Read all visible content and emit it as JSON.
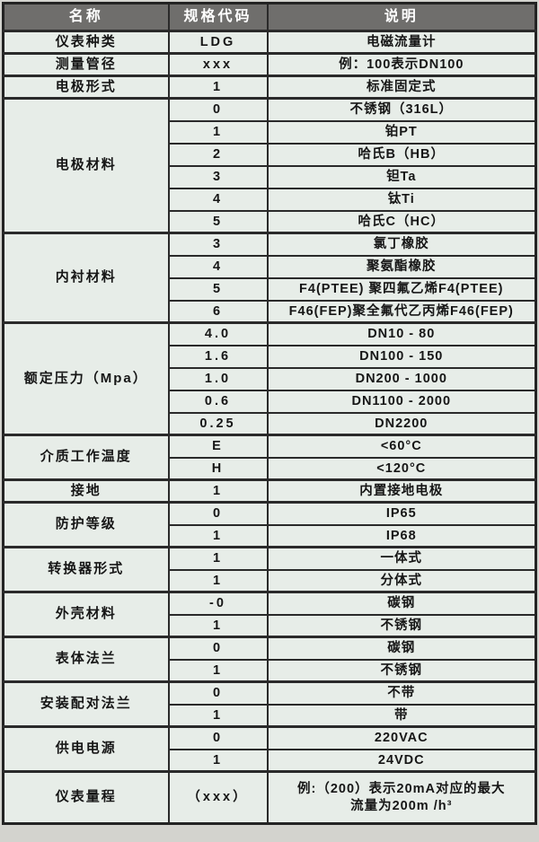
{
  "colors": {
    "header_bg": "#6f6e6c",
    "header_text": "#ffffff",
    "cell_bg": "#e7ede8",
    "border": "#2a2a2a",
    "page_bg": "#d3d3ce"
  },
  "header": {
    "cols": [
      "名称",
      "规格代码",
      "说明"
    ]
  },
  "groups": [
    {
      "name": "仪表种类",
      "rows": [
        {
          "code": "LDG",
          "desc": [
            "电磁流量计"
          ]
        }
      ]
    },
    {
      "name": "测量管径",
      "rows": [
        {
          "code": "xxx",
          "desc": [
            "例：100表示DN100"
          ]
        }
      ]
    },
    {
      "name": "电极形式",
      "rows": [
        {
          "code": "1",
          "desc": [
            "标准固定式"
          ]
        }
      ]
    },
    {
      "name": "电极材料",
      "rows": [
        {
          "code": "0",
          "desc": [
            "不锈钢（316L）"
          ]
        },
        {
          "code": "1",
          "desc": [
            "铂PT"
          ]
        },
        {
          "code": "2",
          "desc": [
            "哈氏B（HB）"
          ]
        },
        {
          "code": "3",
          "desc": [
            "钽Ta"
          ]
        },
        {
          "code": "4",
          "desc": [
            "钛Ti"
          ]
        },
        {
          "code": "5",
          "desc": [
            "哈氏C（HC）"
          ]
        }
      ]
    },
    {
      "name": "内衬材料",
      "rows": [
        {
          "code": "3",
          "desc": [
            "氯丁橡胶"
          ]
        },
        {
          "code": "4",
          "desc": [
            "聚氨酯橡胶"
          ]
        },
        {
          "code": "5",
          "desc": [
            "F4(PTEE) 聚四氟乙烯F4(PTEE)"
          ]
        },
        {
          "code": "6",
          "desc": [
            "F46(FEP)聚全氟代乙丙烯F46(FEP)"
          ]
        }
      ]
    },
    {
      "name": "额定压力（Mpa）",
      "rows": [
        {
          "code": "4.0",
          "desc": [
            "DN10 - 80"
          ]
        },
        {
          "code": "1.6",
          "desc": [
            "DN100 - 150"
          ]
        },
        {
          "code": "1.0",
          "desc": [
            "DN200 - 1000"
          ]
        },
        {
          "code": "0.6",
          "desc": [
            "DN1100 - 2000"
          ]
        },
        {
          "code": "0.25",
          "desc": [
            "DN2200"
          ]
        }
      ]
    },
    {
      "name": "介质工作温度",
      "rows": [
        {
          "code": "E",
          "desc": [
            "<60°C"
          ]
        },
        {
          "code": "H",
          "desc": [
            "<120°C"
          ]
        }
      ]
    },
    {
      "name": "接地",
      "rows": [
        {
          "code": "1",
          "desc": [
            "内置接地电极"
          ]
        }
      ]
    },
    {
      "name": "防护等级",
      "rows": [
        {
          "code": "0",
          "desc": [
            "IP65"
          ]
        },
        {
          "code": "1",
          "desc": [
            "IP68"
          ]
        }
      ]
    },
    {
      "name": "转换器形式",
      "rows": [
        {
          "code": "1",
          "desc": [
            "一体式"
          ]
        },
        {
          "code": "1",
          "desc": [
            "分体式"
          ]
        }
      ]
    },
    {
      "name": "外壳材料",
      "rows": [
        {
          "code": "-0",
          "desc": [
            "碳钢"
          ]
        },
        {
          "code": "1",
          "desc": [
            "不锈钢"
          ]
        }
      ]
    },
    {
      "name": "表体法兰",
      "rows": [
        {
          "code": "0",
          "desc": [
            "碳钢"
          ]
        },
        {
          "code": "1",
          "desc": [
            "不锈钢"
          ]
        }
      ]
    },
    {
      "name": "安装配对法兰",
      "rows": [
        {
          "code": "0",
          "desc": [
            "不带"
          ]
        },
        {
          "code": "1",
          "desc": [
            "带"
          ]
        }
      ]
    },
    {
      "name": "供电电源",
      "rows": [
        {
          "code": "0",
          "desc": [
            "220VAC"
          ]
        },
        {
          "code": "1",
          "desc": [
            "24VDC"
          ]
        }
      ]
    },
    {
      "name": "仪表量程",
      "rows": [
        {
          "code": "（xxx）",
          "desc": [
            "例:（200）表示20mA对应的最大",
            "流量为200m /h³"
          ],
          "tall": true
        }
      ]
    }
  ]
}
